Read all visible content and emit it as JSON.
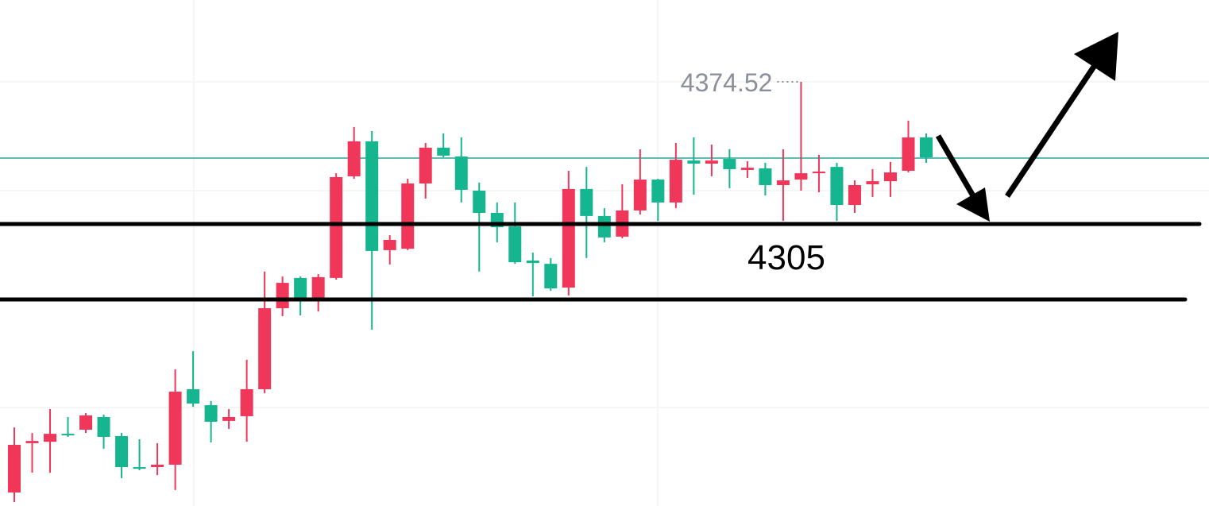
{
  "chart_data": {
    "type": "candlestick",
    "up_color": "#f0375a",
    "down_color": "#15b58f",
    "ylim": [
      4167.1,
      4414.5
    ],
    "open": [
      4173.7,
      4197.8,
      4198.5,
      4202.4,
      4204.4,
      4210.6,
      4201.3,
      4186.1,
      4186.1,
      4187.3,
      4224.2,
      4216.4,
      4208.7,
      4211.0,
      4224.2,
      4263.8,
      4278.6,
      4267.7,
      4278.6,
      4328.3,
      4345.4,
      4292.2,
      4292.9,
      4324.8,
      4342.3,
      4338.0,
      4321.3,
      4310.4,
      4303.8,
      4287.1,
      4285.5,
      4273.9,
      4322.1,
      4308.9,
      4298.8,
      4311.6,
      4326.7,
      4315.5,
      4336.0,
      4334.5,
      4336.8,
      4331.4,
      4332.2,
      4324.0,
      4326.7,
      4329.8,
      4332.9,
      4314.3,
      4324.4,
      4325.9,
      4331.0,
      4347.3
    ],
    "high": [
      4205.5,
      4202.8,
      4214.5,
      4210.6,
      4212.5,
      4211.8,
      4202.8,
      4199.7,
      4197.8,
      4233.9,
      4242.8,
      4218.4,
      4214.5,
      4238.6,
      4281.7,
      4279.3,
      4279.3,
      4280.5,
      4329.8,
      4352.4,
      4350.4,
      4299.5,
      4327.1,
      4344.6,
      4349.3,
      4347.3,
      4325.2,
      4315.5,
      4315.5,
      4291.0,
      4288.3,
      4331.0,
      4332.9,
      4312.7,
      4324.4,
      4341.5,
      4327.1,
      4344.6,
      4347.3,
      4343.8,
      4341.5,
      4335.7,
      4334.9,
      4341.5,
      4374.52,
      4338.8,
      4334.9,
      4326.3,
      4331.8,
      4335.3,
      4355.5,
      4349.3
    ],
    "low": [
      4169.0,
      4183.4,
      4183.4,
      4200.9,
      4202.8,
      4195.1,
      4180.7,
      4184.6,
      4182.2,
      4174.9,
      4215.6,
      4198.2,
      4204.8,
      4198.5,
      4222.2,
      4259.9,
      4260.3,
      4262.2,
      4277.8,
      4327.1,
      4253.3,
      4285.2,
      4292.2,
      4317.4,
      4337.6,
      4315.5,
      4281.7,
      4296.0,
      4285.5,
      4269.6,
      4272.3,
      4270.0,
      4288.3,
      4296.0,
      4298.0,
      4309.6,
      4306.5,
      4312.7,
      4319.3,
      4328.3,
      4322.5,
      4327.5,
      4318.9,
      4306.5,
      4321.3,
      4320.5,
      4306.5,
      4310.4,
      4318.2,
      4318.2,
      4330.2,
      4334.9
    ],
    "close": [
      4197.0,
      4198.9,
      4202.4,
      4201.7,
      4211.4,
      4200.9,
      4186.1,
      4185.3,
      4187.3,
      4223.0,
      4217.2,
      4208.3,
      4210.6,
      4224.2,
      4263.8,
      4276.2,
      4268.9,
      4279.0,
      4327.9,
      4345.4,
      4291.8,
      4297.2,
      4324.8,
      4342.3,
      4338.4,
      4321.7,
      4310.4,
      4303.4,
      4286.3,
      4285.9,
      4273.5,
      4322.1,
      4308.9,
      4298.4,
      4311.6,
      4326.7,
      4315.5,
      4336.4,
      4334.5,
      4336.0,
      4331.8,
      4332.5,
      4324.0,
      4326.3,
      4329.8,
      4330.6,
      4314.3,
      4324.0,
      4325.9,
      4330.2,
      4347.3,
      4337.6
    ],
    "high_label": "4374.52",
    "price_line": {
      "value": 4337.2,
      "color": "#26a69a"
    },
    "levels": [
      {
        "value": 4305,
        "label": "4305"
      },
      {
        "value": 4268.1
      }
    ]
  }
}
